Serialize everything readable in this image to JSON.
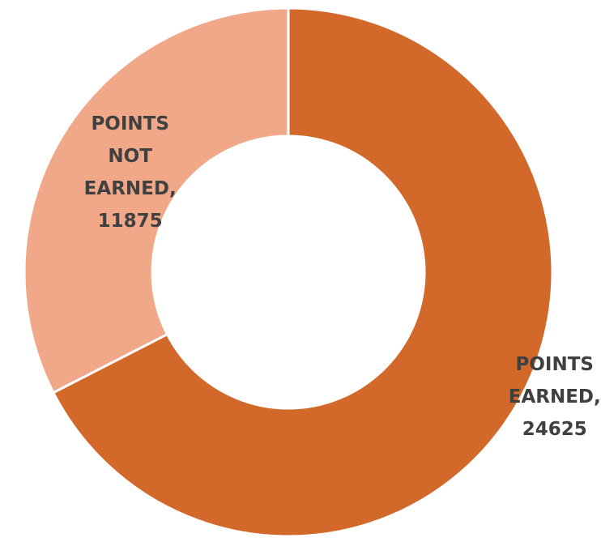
{
  "chart_data": {
    "type": "donut",
    "categories": [
      "POINTS EARNED",
      "POINTS NOT EARNED"
    ],
    "values": [
      24625,
      11875
    ],
    "colors": [
      "#d2692a",
      "#f0a889"
    ]
  }
}
